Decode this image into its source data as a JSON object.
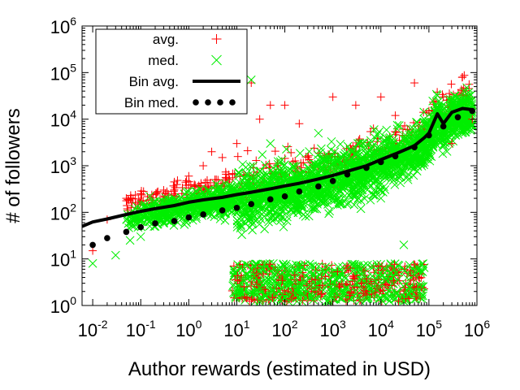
{
  "chart_data": {
    "type": "scatter",
    "title": "",
    "xlabel": "Author rewards (estimated in USD)",
    "ylabel": "# of followers",
    "x_scale": "log",
    "y_scale": "log",
    "xlim": [
      0.006,
      1000000
    ],
    "ylim": [
      1,
      1000000
    ],
    "x_tick_exponents": [
      -2,
      -1,
      0,
      1,
      2,
      3,
      4,
      5,
      6
    ],
    "y_tick_exponents": [
      0,
      1,
      2,
      3,
      4,
      5,
      6
    ],
    "tick_base": "10",
    "grid": false,
    "legend_position": "top-left",
    "legend": [
      {
        "label": "avg.",
        "marker": "plus",
        "color": "#ff0000"
      },
      {
        "label": "med.",
        "marker": "cross",
        "color": "#00ee00"
      },
      {
        "label": "Bin avg.",
        "marker": "line",
        "color": "#000000"
      },
      {
        "label": "Bin med.",
        "marker": "dot",
        "color": "#000000"
      }
    ],
    "colors": {
      "avg": "#ff0000",
      "med": "#00ee00",
      "bins": "#000000"
    },
    "series": [
      {
        "name": "Bin avg.",
        "style": "line",
        "x": [
          0.006,
          0.01,
          0.02,
          0.05,
          0.1,
          0.2,
          0.5,
          1,
          2,
          5,
          10,
          20,
          50,
          100,
          200,
          500,
          1000,
          2000,
          5000,
          10000,
          20000,
          50000,
          80000,
          100000,
          150000,
          200000,
          300000,
          500000,
          800000
        ],
        "y": [
          50,
          62,
          72,
          90,
          105,
          120,
          140,
          165,
          185,
          210,
          240,
          270,
          320,
          370,
          420,
          520,
          620,
          760,
          1000,
          1350,
          1800,
          2700,
          4000,
          5000,
          13000,
          8000,
          14000,
          17000,
          16000
        ]
      },
      {
        "name": "Bin med.",
        "style": "dots",
        "x": [
          0.01,
          0.02,
          0.05,
          0.1,
          0.2,
          0.5,
          1,
          2,
          5,
          10,
          20,
          50,
          100,
          200,
          500,
          1000,
          2000,
          5000,
          10000,
          20000,
          50000,
          100000,
          200000,
          400000,
          800000
        ],
        "y": [
          20,
          28,
          38,
          48,
          58,
          65,
          78,
          90,
          110,
          125,
          150,
          190,
          220,
          280,
          360,
          470,
          650,
          900,
          1200,
          1600,
          2500,
          4500,
          7000,
          11000,
          15000
        ]
      },
      {
        "name": "avg.",
        "style": "scatter",
        "marker": "plus",
        "note": "dense per-author cloud; representative sampled points",
        "x": [
          0.01,
          0.02,
          0.05,
          0.1,
          0.3,
          0.5,
          1,
          2,
          3,
          5,
          5,
          10,
          20,
          30,
          50,
          100,
          200,
          1000,
          3000,
          5000,
          10000,
          20000,
          50000,
          100000,
          200000,
          300000,
          500000,
          800000
        ],
        "y": [
          15,
          70,
          200,
          250,
          300,
          450,
          600,
          1000,
          2000,
          1500,
          20000,
          3000,
          60000,
          10000,
          20000,
          20000,
          8000,
          30000,
          20000,
          2,
          30000,
          12000,
          60000,
          15000,
          30000,
          3000,
          80000,
          10000
        ]
      },
      {
        "name": "med.",
        "style": "scatter",
        "marker": "cross",
        "note": "dense per-author cloud; representative sampled points",
        "x": [
          0.01,
          0.03,
          0.06,
          0.1,
          0.2,
          0.5,
          1,
          2,
          5,
          10,
          20,
          30,
          50,
          100,
          300,
          500,
          1000,
          3000,
          10000,
          30000,
          100000,
          300000,
          800000
        ],
        "y": [
          8,
          12,
          25,
          30,
          50,
          70,
          100,
          150,
          300,
          2,
          70000,
          1.2,
          3000,
          1.5,
          2,
          5000,
          1.8,
          3,
          200,
          20,
          9000,
          12000,
          14000
        ]
      }
    ],
    "cloud": {
      "x_range": [
        0.05,
        800000
      ],
      "lower_band_y": [
        1.2,
        8
      ],
      "lower_band_x": [
        8,
        80000
      ],
      "note": "green cross / red plus cloud spanning the band around the bin averages"
    }
  }
}
